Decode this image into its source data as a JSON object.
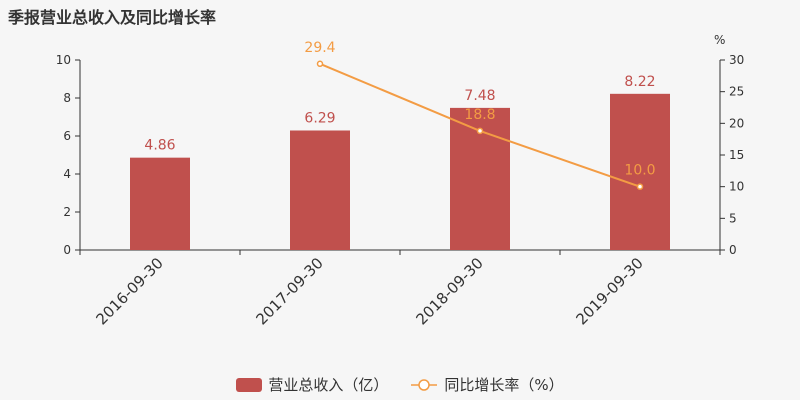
{
  "title": "季报营业总收入及同比增长率",
  "legend": {
    "bar_label": "营业总收入（亿）",
    "line_label": "同比增长率（%）"
  },
  "colors": {
    "bar": "#c0504d",
    "line": "#f39c44",
    "axis": "#333333"
  },
  "chart_data": {
    "type": "bar",
    "categories": [
      "2016-09-30",
      "2017-09-30",
      "2018-09-30",
      "2019-09-30"
    ],
    "series": [
      {
        "name": "营业总收入（亿）",
        "type": "bar",
        "axis": "left",
        "values": [
          4.86,
          6.29,
          7.48,
          8.22
        ],
        "labels": [
          "4.86",
          "6.29",
          "7.48",
          "8.22"
        ]
      },
      {
        "name": "同比增长率（%）",
        "type": "line",
        "axis": "right",
        "values": [
          null,
          29.4,
          18.8,
          10.0
        ],
        "labels": [
          "",
          "29.4",
          "18.8",
          "10.0"
        ]
      }
    ],
    "y_left": {
      "min": 0,
      "max": 10,
      "ticks": [
        "0",
        "2",
        "4",
        "6",
        "8",
        "10"
      ]
    },
    "y_right": {
      "min": 0,
      "max": 30,
      "unit": "%",
      "ticks": [
        "0",
        "5",
        "10",
        "15",
        "20",
        "25",
        "30"
      ]
    },
    "grid": false,
    "legend_position": "bottom"
  }
}
